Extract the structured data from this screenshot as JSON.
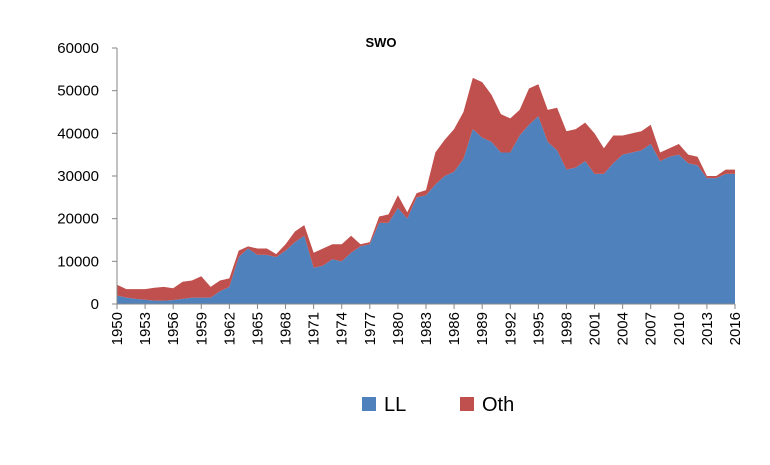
{
  "chart_data": {
    "type": "area",
    "title": "SWO",
    "xlabel": "",
    "ylabel": "",
    "ylim": [
      0,
      60000
    ],
    "yticks": [
      0,
      10000,
      20000,
      30000,
      40000,
      50000,
      60000
    ],
    "xlim": [
      1950,
      2016
    ],
    "xticks": [
      1950,
      1953,
      1956,
      1959,
      1962,
      1965,
      1968,
      1971,
      1974,
      1977,
      1980,
      1983,
      1986,
      1989,
      1992,
      1995,
      1998,
      2001,
      2004,
      2007,
      2010,
      2013,
      2016
    ],
    "stacked": true,
    "grid": false,
    "legend_position": "bottom",
    "x": [
      1950,
      1951,
      1952,
      1953,
      1954,
      1955,
      1956,
      1957,
      1958,
      1959,
      1960,
      1961,
      1962,
      1963,
      1964,
      1965,
      1966,
      1967,
      1968,
      1969,
      1970,
      1971,
      1972,
      1973,
      1974,
      1975,
      1976,
      1977,
      1978,
      1979,
      1980,
      1981,
      1982,
      1983,
      1984,
      1985,
      1986,
      1987,
      1988,
      1989,
      1990,
      1991,
      1992,
      1993,
      1994,
      1995,
      1996,
      1997,
      1998,
      1999,
      2000,
      2001,
      2002,
      2003,
      2004,
      2005,
      2006,
      2007,
      2008,
      2009,
      2010,
      2011,
      2012,
      2013,
      2014,
      2015,
      2016
    ],
    "series": [
      {
        "name": "LL",
        "color": "#4F81BD",
        "values": [
          2000,
          1500,
          1200,
          1000,
          800,
          800,
          900,
          1200,
          1500,
          1500,
          1500,
          3000,
          4000,
          11000,
          13000,
          11500,
          11500,
          11000,
          12500,
          14500,
          16000,
          8500,
          9000,
          10500,
          10000,
          12000,
          13500,
          14000,
          19000,
          19000,
          22500,
          20000,
          25000,
          25500,
          28000,
          30000,
          31000,
          34000,
          41000,
          39000,
          38000,
          35500,
          35500,
          39500,
          42000,
          44000,
          38000,
          36000,
          31500,
          32000,
          33500,
          30500,
          30500,
          33000,
          35000,
          35500,
          36000,
          37500,
          33500,
          34500,
          35000,
          33000,
          32500,
          29500,
          29500,
          30500,
          30500
        ]
      },
      {
        "name": "Oth",
        "color": "#C0504D",
        "values": [
          2500,
          2000,
          2300,
          2500,
          3000,
          3200,
          2800,
          4000,
          4000,
          5000,
          2500,
          2500,
          2000,
          1500,
          500,
          1500,
          1500,
          700,
          1500,
          2500,
          2500,
          3500,
          4000,
          3500,
          4000,
          4000,
          500,
          500,
          1500,
          2000,
          3000,
          1500,
          1000,
          1200,
          7500,
          8500,
          10000,
          11000,
          12000,
          13000,
          11000,
          9000,
          8000,
          6000,
          8500,
          7500,
          7500,
          10000,
          9000,
          9000,
          9000,
          9500,
          6000,
          6500,
          4500,
          4500,
          4500,
          4500,
          2000,
          2000,
          2500,
          2000,
          2000,
          500,
          500,
          1000,
          1000
        ]
      }
    ]
  }
}
